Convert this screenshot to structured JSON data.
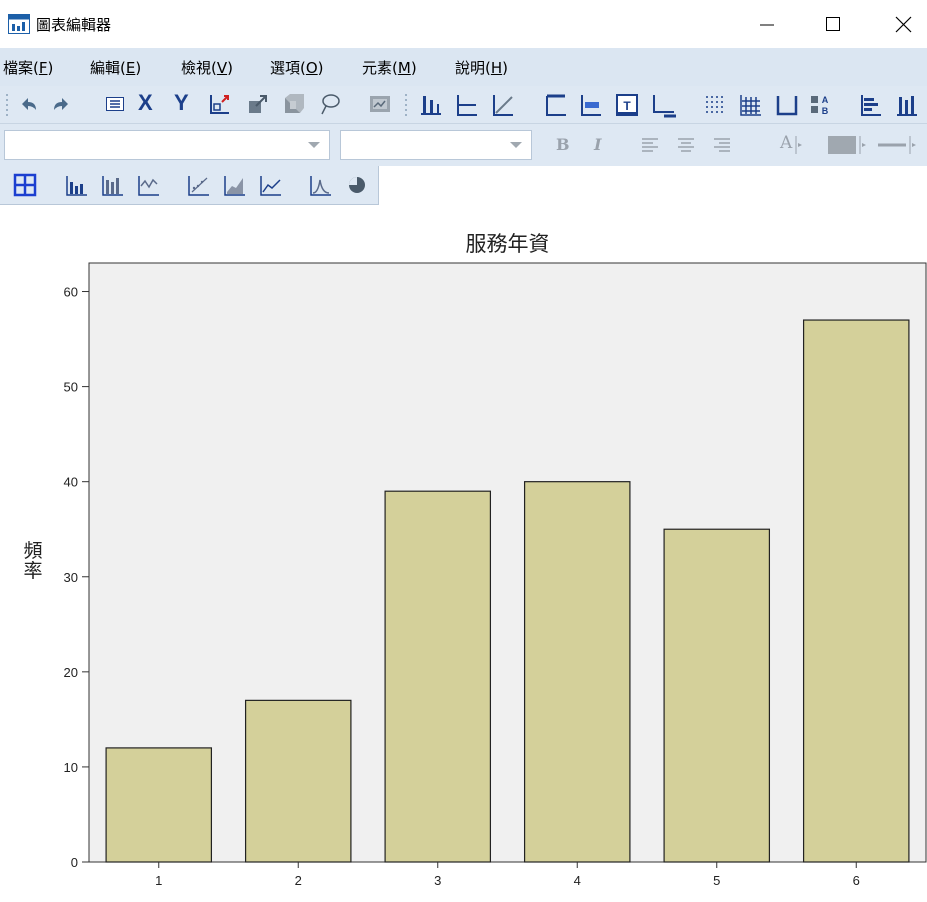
{
  "window": {
    "title": "圖表編輯器"
  },
  "menu": [
    {
      "label": "檔案(",
      "mnemonic": "F",
      "tail": ")"
    },
    {
      "label": "編輯(",
      "mnemonic": "E",
      "tail": ")"
    },
    {
      "label": "檢視(",
      "mnemonic": "V",
      "tail": ")"
    },
    {
      "label": "選項(",
      "mnemonic": "O",
      "tail": ")"
    },
    {
      "label": "元素(",
      "mnemonic": "M",
      "tail": ")"
    },
    {
      "label": "說明(",
      "mnemonic": "H",
      "tail": ")"
    }
  ],
  "toolbar": {
    "x_label": "X",
    "y_label": "Y",
    "bold_label": "B",
    "italic_label": "I",
    "font_color_label": "A",
    "font_combo_value": "",
    "size_combo_value": ""
  },
  "colors": {
    "bar_fill": "#d4d09a",
    "plot_bg": "#f0f0f0",
    "toolbar_bg": "#dee8f3",
    "menubar_bg": "#dbe6f2"
  },
  "chart_data": {
    "type": "bar",
    "title": "服務年資",
    "xlabel": "",
    "ylabel": "頻率",
    "categories": [
      "1",
      "2",
      "3",
      "4",
      "5",
      "6"
    ],
    "values": [
      12,
      17,
      39,
      40,
      35,
      57
    ],
    "ylim": [
      0,
      63
    ],
    "yticks": [
      0,
      10,
      20,
      30,
      40,
      50,
      60
    ],
    "grid": false,
    "legend": "none"
  }
}
